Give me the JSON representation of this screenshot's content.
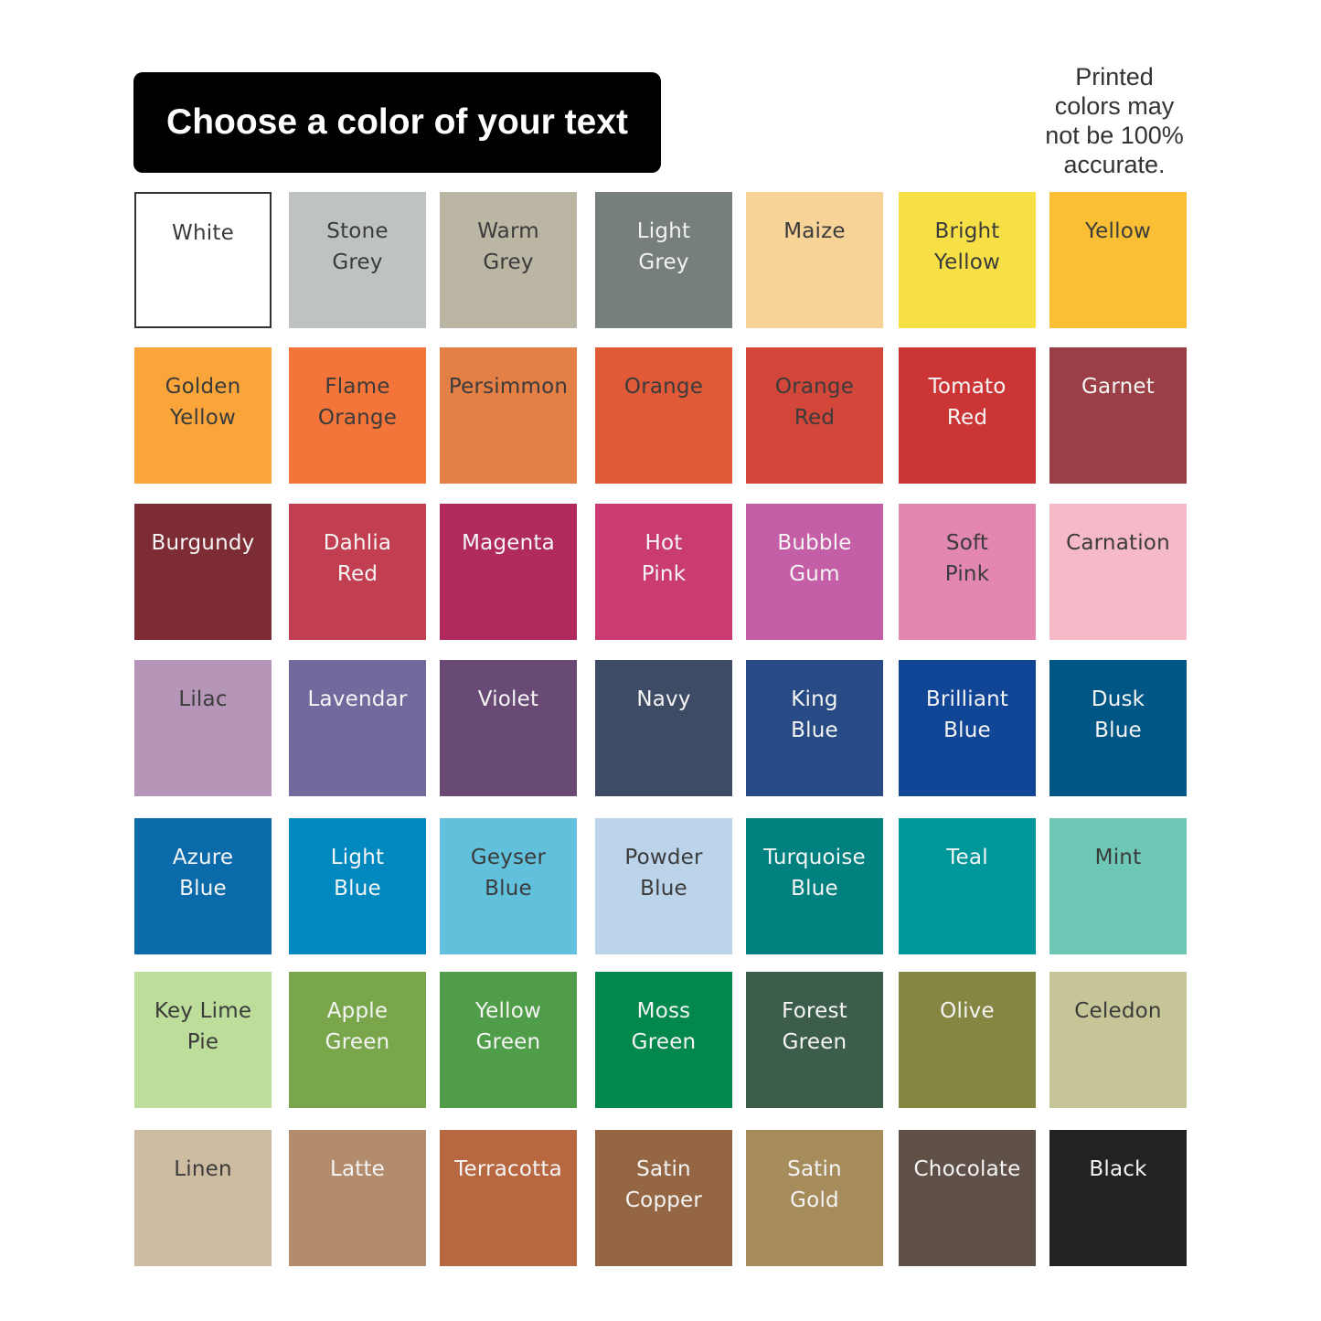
{
  "header": {
    "title": "Choose a color of your text"
  },
  "note": "Printed\ncolors may\nnot be 100%\naccurate.",
  "colors": [
    [
      {
        "name": "White",
        "hex": "#ffffff",
        "text": "#3b3b3b",
        "border": "#333333"
      },
      {
        "name": "Stone\nGrey",
        "hex": "#bec3c1",
        "text": "#3b3b3b"
      },
      {
        "name": "Warm\nGrey",
        "hex": "#bbb5a3",
        "text": "#3b3b3b"
      },
      {
        "name": "Light\nGrey",
        "hex": "#777f7b",
        "text": "#f2f2f2"
      },
      {
        "name": "Maize",
        "hex": "#f7d398",
        "text": "#3b3b3b"
      },
      {
        "name": "Bright\nYellow",
        "hex": "#f7e046",
        "text": "#3b3b3b"
      },
      {
        "name": "Yellow",
        "hex": "#fbbf35",
        "text": "#3b3b3b"
      }
    ],
    [
      {
        "name": "Golden\nYellow",
        "hex": "#f9a53a",
        "text": "#3b3b3b"
      },
      {
        "name": "Flame\nOrange",
        "hex": "#f37539",
        "text": "#3b3b3b"
      },
      {
        "name": "Persimmon",
        "hex": "#e47f45",
        "text": "#3b3b3b"
      },
      {
        "name": "Orange",
        "hex": "#e05a37",
        "text": "#3b3b3b"
      },
      {
        "name": "Orange\nRed",
        "hex": "#d2473a",
        "text": "#3b3b3b"
      },
      {
        "name": "Tomato\nRed",
        "hex": "#cc3535",
        "text": "#f5f5f5"
      },
      {
        "name": "Garnet",
        "hex": "#9a3f46",
        "text": "#f5f5f5"
      }
    ],
    [
      {
        "name": "Burgundy",
        "hex": "#7d2b34",
        "text": "#f5f5f5"
      },
      {
        "name": "Dahlia\nRed",
        "hex": "#c13f50",
        "text": "#f5f5f5"
      },
      {
        "name": "Magenta",
        "hex": "#b12a5e",
        "text": "#f5f5f5"
      },
      {
        "name": "Hot\nPink",
        "hex": "#c93b71",
        "text": "#f5f5f5"
      },
      {
        "name": "Bubble\nGum",
        "hex": "#c45ea6",
        "text": "#f5f5f5"
      },
      {
        "name": "Soft\nPink",
        "hex": "#e387b0",
        "text": "#3b3b3b"
      },
      {
        "name": "Carnation",
        "hex": "#f5b9c7",
        "text": "#3b3b3b"
      }
    ],
    [
      {
        "name": "Lilac",
        "hex": "#b596b9",
        "text": "#3b3b3b"
      },
      {
        "name": "Lavendar",
        "hex": "#73699d",
        "text": "#f5f5f5"
      },
      {
        "name": "Violet",
        "hex": "#684a74",
        "text": "#f5f5f5"
      },
      {
        "name": "Navy",
        "hex": "#3e4b64",
        "text": "#f5f5f5"
      },
      {
        "name": "King\nBlue",
        "hex": "#294b85",
        "text": "#f5f5f5"
      },
      {
        "name": "Brilliant\nBlue",
        "hex": "#114595",
        "text": "#f5f5f5"
      },
      {
        "name": "Dusk\nBlue",
        "hex": "#005684",
        "text": "#f5f5f5"
      }
    ],
    [
      {
        "name": "Azure\nBlue",
        "hex": "#0b6aa9",
        "text": "#f5f5f5"
      },
      {
        "name": "Light\nBlue",
        "hex": "#0189bf",
        "text": "#f5f5f5"
      },
      {
        "name": "Geyser\nBlue",
        "hex": "#61c0db",
        "text": "#3b3b3b"
      },
      {
        "name": "Powder\nBlue",
        "hex": "#bcd4ea",
        "text": "#3b3b3b"
      },
      {
        "name": "Turquoise\nBlue",
        "hex": "#018080",
        "text": "#f5f5f5"
      },
      {
        "name": "Teal",
        "hex": "#00979a",
        "text": "#f5f5f5"
      },
      {
        "name": "Mint",
        "hex": "#6ec6b4",
        "text": "#3b3b3b"
      }
    ],
    [
      {
        "name": "Key Lime\nPie",
        "hex": "#bddd9b",
        "text": "#3b3b3b"
      },
      {
        "name": "Apple\nGreen",
        "hex": "#7aa64b",
        "text": "#f5f5f5"
      },
      {
        "name": "Yellow\nGreen",
        "hex": "#4f9d48",
        "text": "#f5f5f5"
      },
      {
        "name": "Moss\nGreen",
        "hex": "#02884c",
        "text": "#f5f5f5"
      },
      {
        "name": "Forest\nGreen",
        "hex": "#3d5d4b",
        "text": "#f5f5f5"
      },
      {
        "name": "Olive",
        "hex": "#848641",
        "text": "#f5f5f5"
      },
      {
        "name": "Celedon",
        "hex": "#c5c597",
        "text": "#3b3b3b"
      }
    ],
    [
      {
        "name": "Linen",
        "hex": "#cdbba2",
        "text": "#3b3b3b"
      },
      {
        "name": "Latte",
        "hex": "#b28c6c",
        "text": "#f5f5f5"
      },
      {
        "name": "Terracotta",
        "hex": "#b86841",
        "text": "#f5f5f5"
      },
      {
        "name": "Satin\nCopper",
        "hex": "#946643",
        "text": "#f5f5f5"
      },
      {
        "name": "Satin\nGold",
        "hex": "#a68b5b",
        "text": "#f5f5f5"
      },
      {
        "name": "Chocolate",
        "hex": "#5f5147",
        "text": "#f5f5f5"
      },
      {
        "name": "Black",
        "hex": "#222222",
        "text": "#f5f5f5"
      }
    ]
  ]
}
